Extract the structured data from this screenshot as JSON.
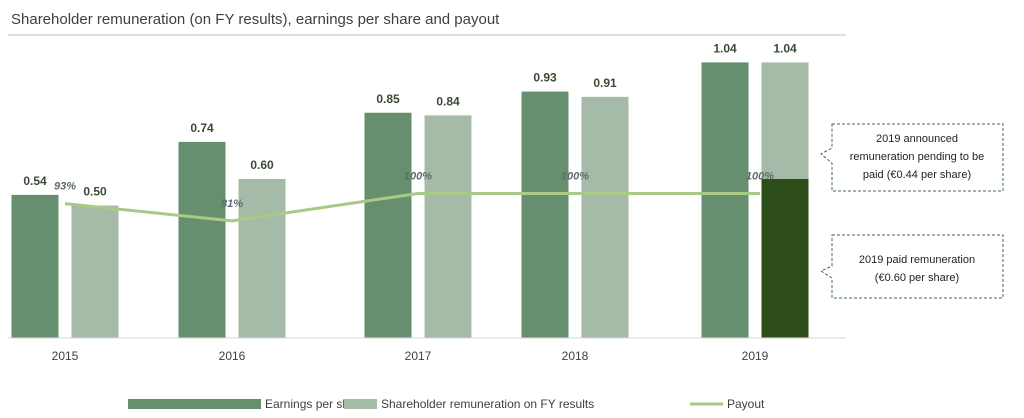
{
  "chart_data": {
    "type": "bar",
    "title": "Shareholder remuneration (on FY results), earnings per share and payout",
    "categories": [
      "2015",
      "2016",
      "2017",
      "2018",
      "2019"
    ],
    "series": [
      {
        "name": "Earnings per share",
        "values": [
          0.54,
          0.74,
          0.85,
          0.93,
          1.04
        ],
        "color": "#668f6f"
      },
      {
        "name": "Shareholder remuneration on FY results",
        "values": [
          0.5,
          0.6,
          0.84,
          0.91,
          1.04
        ],
        "color": "#a5bba8"
      },
      {
        "name": "Payout",
        "type": "line",
        "values": [
          93,
          81,
          100,
          100,
          100
        ],
        "value_labels": [
          "93%",
          "81%",
          "100%",
          "100%",
          "100%"
        ],
        "color": "#a9c987"
      }
    ],
    "value_labels": {
      "eps": [
        "0.54",
        "0.74",
        "0.85",
        "0.93",
        "1.04"
      ],
      "remuneration": [
        "0.50",
        "0.60",
        "0.84",
        "0.91",
        "1.04"
      ]
    },
    "stacked_2019_remuneration": {
      "paid": 0.6,
      "pending": 0.44,
      "paid_color": "#2d4e19"
    },
    "ylim": [
      0,
      1.2
    ],
    "payout_ylim": [
      0,
      220
    ],
    "legend": {
      "position": "bottom"
    },
    "grid": false,
    "annotations": [
      {
        "name": "pending-remuneration",
        "lines": [
          "2019 announced",
          "remuneration pending to be",
          "paid (€0.44 per share)"
        ]
      },
      {
        "name": "paid-remuneration",
        "lines": [
          "2019 paid remuneration",
          "(€0.60 per share)"
        ]
      }
    ]
  }
}
